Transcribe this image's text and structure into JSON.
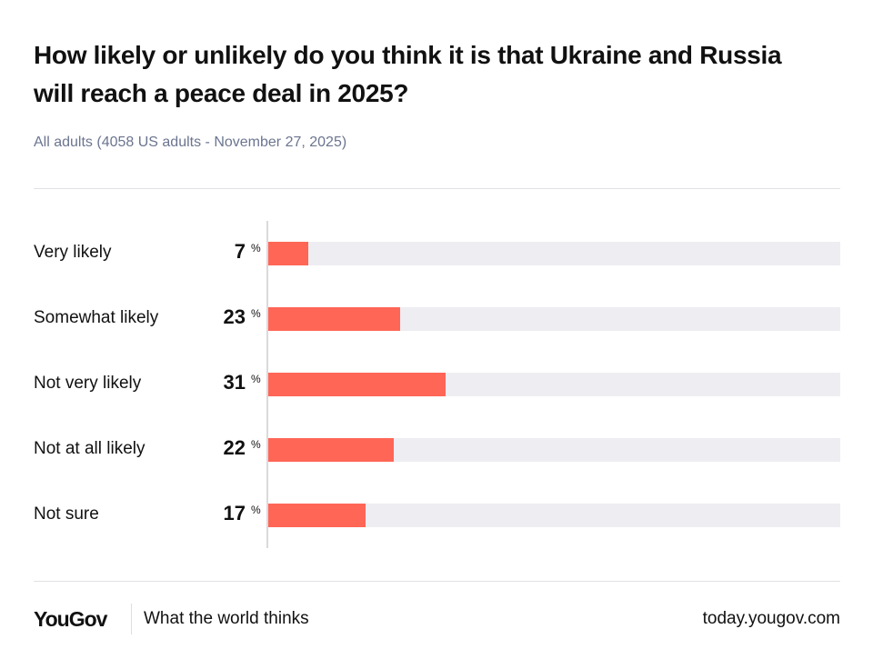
{
  "chart_data": {
    "type": "bar",
    "orientation": "horizontal",
    "title": "How likely or unlikely do you think it is that Ukraine and Russia will reach a peace deal in 2025?",
    "subtitle": "All adults (4058 US adults - November 27, 2025)",
    "categories": [
      "Very likely",
      "Somewhat likely",
      "Not very likely",
      "Not at all likely",
      "Not sure"
    ],
    "values": [
      7,
      23,
      31,
      22,
      17
    ],
    "unit": "%",
    "xlim": [
      0,
      100
    ],
    "grid": false,
    "bar_color": "#ff6656",
    "track_color": "#ededf2"
  },
  "footer": {
    "logo": "YouGov",
    "tagline": "What the world thinks",
    "url": "today.yougov.com"
  }
}
